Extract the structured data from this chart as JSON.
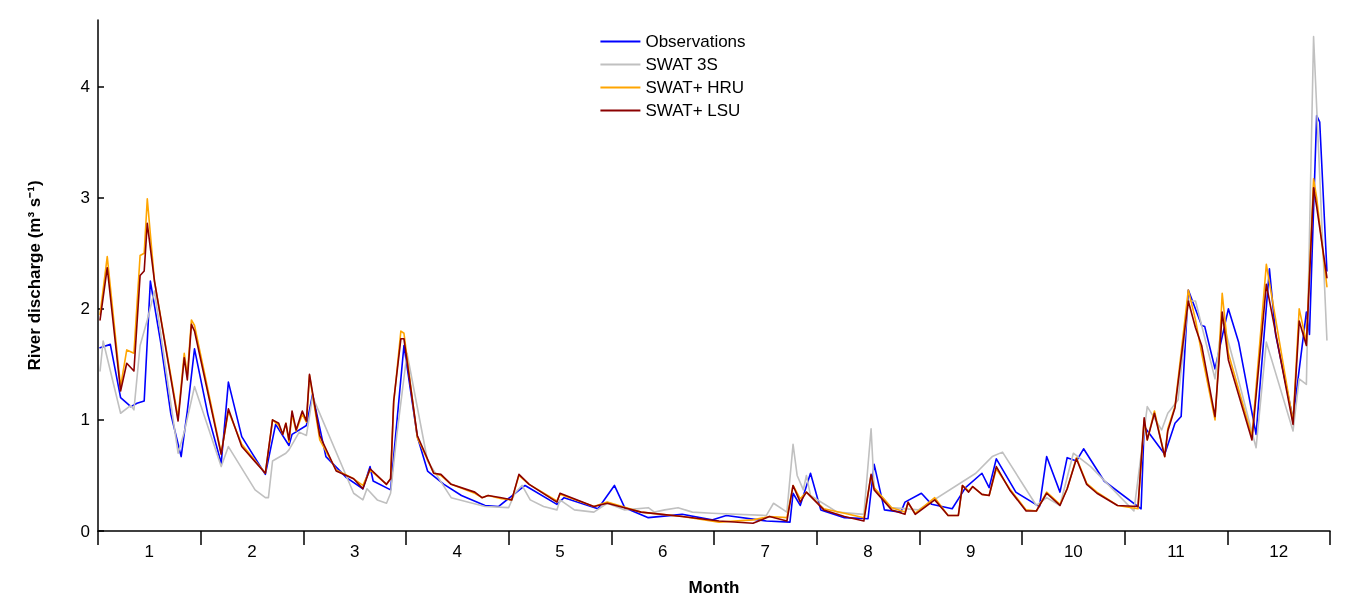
{
  "chart_data": {
    "type": "line",
    "xlabel": "Month",
    "ylabel": "River discharge (m³ s⁻¹)",
    "xlim": [
      0.5,
      12.5
    ],
    "ylim": [
      0,
      4.6
    ],
    "xticks": [
      1,
      2,
      3,
      4,
      5,
      6,
      7,
      8,
      9,
      10,
      11,
      12
    ],
    "yticks": [
      0,
      1,
      2,
      3,
      4
    ],
    "grid": false,
    "legend": "top",
    "marker": "none",
    "line_style": "solid",
    "series": [
      {
        "name": "Observations",
        "color": "#0000ff",
        "x": [
          0.52,
          0.62,
          0.72,
          0.82,
          0.88,
          0.95,
          1.01,
          1.11,
          1.21,
          1.31,
          1.37,
          1.44,
          1.57,
          1.7,
          1.77,
          1.9,
          2.13,
          2.23,
          2.36,
          2.39,
          2.53,
          2.59,
          2.72,
          2.92,
          3.08,
          3.15,
          3.18,
          3.35,
          3.48,
          3.61,
          3.71,
          3.87,
          4.04,
          4.27,
          4.4,
          4.66,
          4.97,
          5.04,
          5.37,
          5.53,
          5.63,
          5.86,
          6.19,
          6.48,
          6.62,
          7.01,
          7.24,
          7.27,
          7.34,
          7.44,
          7.54,
          7.77,
          8.0,
          8.06,
          8.16,
          8.32,
          8.36,
          8.52,
          8.62,
          8.82,
          8.95,
          9.11,
          9.18,
          9.25,
          9.44,
          9.67,
          9.74,
          9.87,
          9.94,
          10.03,
          10.1,
          10.3,
          10.66,
          10.69,
          10.89,
          10.99,
          11.05,
          11.12,
          11.25,
          11.28,
          11.38,
          11.51,
          11.61,
          11.78,
          11.91,
          11.97,
          12.14,
          12.27,
          12.3,
          12.37,
          12.4,
          12.47
        ],
        "values": [
          1.65,
          1.68,
          1.2,
          1.12,
          1.15,
          1.17,
          2.25,
          1.7,
          1.05,
          0.67,
          1.08,
          1.64,
          1.05,
          0.61,
          1.34,
          0.85,
          0.51,
          0.96,
          0.77,
          0.87,
          0.95,
          1.23,
          0.67,
          0.48,
          0.38,
          0.58,
          0.45,
          0.37,
          1.67,
          0.85,
          0.54,
          0.42,
          0.32,
          0.23,
          0.22,
          0.41,
          0.24,
          0.3,
          0.2,
          0.41,
          0.21,
          0.12,
          0.15,
          0.1,
          0.14,
          0.09,
          0.08,
          0.34,
          0.23,
          0.52,
          0.19,
          0.12,
          0.11,
          0.6,
          0.19,
          0.17,
          0.26,
          0.34,
          0.24,
          0.2,
          0.39,
          0.52,
          0.39,
          0.65,
          0.35,
          0.22,
          0.67,
          0.35,
          0.66,
          0.63,
          0.74,
          0.45,
          0.2,
          0.94,
          0.69,
          0.97,
          1.03,
          2.17,
          1.85,
          1.84,
          1.46,
          2.0,
          1.7,
          0.87,
          2.36,
          1.77,
          1.01,
          1.97,
          1.77,
          3.74,
          3.68,
          2.34
        ]
      },
      {
        "name": "SWAT 3S",
        "color": "#c0c0c0",
        "x": [
          0.52,
          0.55,
          0.72,
          0.82,
          0.85,
          0.91,
          0.98,
          1.05,
          1.28,
          1.34,
          1.44,
          1.7,
          1.77,
          2.03,
          2.13,
          2.16,
          2.2,
          2.33,
          2.36,
          2.46,
          2.53,
          2.59,
          2.99,
          3.08,
          3.12,
          3.22,
          3.31,
          3.35,
          3.41,
          3.51,
          3.71,
          3.94,
          4.27,
          4.5,
          4.56,
          4.63,
          4.71,
          4.84,
          4.97,
          5.0,
          5.14,
          5.33,
          5.46,
          5.63,
          5.86,
          5.92,
          6.02,
          6.15,
          6.29,
          6.48,
          7.01,
          7.08,
          7.21,
          7.27,
          7.31,
          7.37,
          7.4,
          7.44,
          7.7,
          7.96,
          8.03,
          8.06,
          8.23,
          8.49,
          9.05,
          9.21,
          9.31,
          9.64,
          9.74,
          9.87,
          10.0,
          10.17,
          10.59,
          10.72,
          10.86,
          10.92,
          11.02,
          11.12,
          11.19,
          11.38,
          11.45,
          11.58,
          11.78,
          11.88,
          12.14,
          12.2,
          12.27,
          12.34,
          12.47
        ],
        "values": [
          1.44,
          1.71,
          1.06,
          1.13,
          1.09,
          1.67,
          1.9,
          2.16,
          0.7,
          0.89,
          1.3,
          0.58,
          0.76,
          0.37,
          0.3,
          0.3,
          0.63,
          0.7,
          0.73,
          0.89,
          0.86,
          1.21,
          0.34,
          0.28,
          0.38,
          0.28,
          0.25,
          0.34,
          0.86,
          1.6,
          0.63,
          0.3,
          0.22,
          0.21,
          0.34,
          0.41,
          0.28,
          0.22,
          0.19,
          0.28,
          0.19,
          0.17,
          0.25,
          0.19,
          0.21,
          0.17,
          0.19,
          0.21,
          0.17,
          0.16,
          0.14,
          0.25,
          0.17,
          0.78,
          0.5,
          0.37,
          0.5,
          0.32,
          0.17,
          0.15,
          0.92,
          0.39,
          0.21,
          0.19,
          0.52,
          0.67,
          0.71,
          0.23,
          0.3,
          0.23,
          0.7,
          0.58,
          0.18,
          1.12,
          0.91,
          1.06,
          1.18,
          2.07,
          2.07,
          1.37,
          1.91,
          1.46,
          0.75,
          1.7,
          0.9,
          1.37,
          1.32,
          4.45,
          1.72
        ]
      },
      {
        "name": "SWAT+ HRU",
        "color": "#ffa500",
        "x": [
          0.52,
          0.59,
          0.72,
          0.78,
          0.85,
          0.91,
          0.95,
          0.98,
          1.05,
          1.28,
          1.34,
          1.37,
          1.41,
          1.44,
          1.7,
          1.77,
          1.9,
          2.13,
          2.2,
          2.26,
          2.3,
          2.33,
          2.36,
          2.39,
          2.43,
          2.49,
          2.53,
          2.56,
          2.66,
          2.82,
          2.99,
          3.08,
          3.15,
          3.31,
          3.35,
          3.38,
          3.45,
          3.48,
          3.61,
          3.77,
          3.84,
          3.94,
          4.17,
          4.24,
          4.3,
          4.43,
          4.53,
          4.6,
          4.7,
          4.97,
          5.0,
          5.33,
          5.46,
          5.79,
          6.19,
          6.55,
          6.88,
          7.04,
          7.21,
          7.27,
          7.34,
          7.4,
          7.57,
          7.77,
          7.96,
          8.03,
          8.06,
          8.23,
          8.36,
          8.39,
          8.46,
          8.49,
          8.65,
          8.78,
          8.88,
          8.92,
          8.98,
          9.02,
          9.11,
          9.18,
          9.25,
          9.38,
          9.54,
          9.64,
          9.74,
          9.87,
          9.94,
          10.03,
          10.13,
          10.23,
          10.43,
          10.63,
          10.69,
          10.72,
          10.79,
          10.89,
          10.92,
          10.99,
          11.12,
          11.19,
          11.25,
          11.38,
          11.42,
          11.45,
          11.51,
          11.74,
          11.88,
          12.14,
          12.2,
          12.27,
          12.34,
          12.37,
          12.47
        ],
        "values": [
          1.95,
          2.47,
          1.3,
          1.63,
          1.6,
          2.48,
          2.5,
          2.99,
          2.25,
          1.02,
          1.6,
          1.4,
          1.9,
          1.85,
          0.7,
          1.08,
          0.78,
          0.52,
          1.0,
          0.95,
          0.87,
          0.97,
          0.8,
          1.05,
          0.9,
          1.05,
          0.98,
          1.4,
          0.82,
          0.55,
          0.47,
          0.41,
          0.55,
          0.42,
          0.47,
          1.15,
          1.8,
          1.78,
          0.84,
          0.52,
          0.5,
          0.42,
          0.34,
          0.3,
          0.32,
          0.29,
          0.28,
          0.5,
          0.42,
          0.27,
          0.33,
          0.22,
          0.26,
          0.17,
          0.13,
          0.08,
          0.1,
          0.13,
          0.12,
          0.41,
          0.29,
          0.35,
          0.2,
          0.16,
          0.12,
          0.5,
          0.39,
          0.21,
          0.17,
          0.25,
          0.16,
          0.18,
          0.3,
          0.14,
          0.14,
          0.41,
          0.36,
          0.4,
          0.33,
          0.32,
          0.56,
          0.38,
          0.19,
          0.18,
          0.35,
          0.24,
          0.38,
          0.66,
          0.43,
          0.35,
          0.23,
          0.2,
          1.0,
          0.82,
          1.08,
          0.67,
          0.92,
          1.12,
          2.17,
          1.9,
          1.6,
          1.0,
          1.6,
          2.14,
          1.6,
          0.85,
          2.4,
          0.98,
          2.0,
          1.7,
          3.17,
          3.0,
          2.2
        ]
      },
      {
        "name": "SWAT+ LSU",
        "color": "#8b0000",
        "x": [
          0.52,
          0.59,
          0.72,
          0.78,
          0.85,
          0.91,
          0.95,
          0.98,
          1.05,
          1.28,
          1.34,
          1.37,
          1.41,
          1.44,
          1.7,
          1.77,
          1.9,
          2.13,
          2.2,
          2.26,
          2.3,
          2.33,
          2.36,
          2.39,
          2.43,
          2.49,
          2.53,
          2.56,
          2.66,
          2.82,
          2.99,
          3.08,
          3.15,
          3.31,
          3.35,
          3.38,
          3.45,
          3.48,
          3.61,
          3.77,
          3.84,
          3.94,
          4.17,
          4.24,
          4.3,
          4.43,
          4.53,
          4.6,
          4.7,
          4.97,
          5.0,
          5.33,
          5.46,
          5.79,
          6.19,
          6.55,
          6.88,
          7.04,
          7.21,
          7.27,
          7.34,
          7.4,
          7.57,
          7.77,
          7.96,
          8.03,
          8.06,
          8.23,
          8.36,
          8.39,
          8.46,
          8.49,
          8.65,
          8.78,
          8.88,
          8.92,
          8.98,
          9.02,
          9.11,
          9.18,
          9.25,
          9.38,
          9.54,
          9.64,
          9.74,
          9.87,
          9.94,
          10.03,
          10.13,
          10.23,
          10.43,
          10.63,
          10.69,
          10.72,
          10.79,
          10.89,
          10.92,
          10.99,
          11.12,
          11.19,
          11.25,
          11.38,
          11.42,
          11.45,
          11.51,
          11.74,
          11.88,
          12.14,
          12.2,
          12.27,
          12.34,
          12.37,
          12.47
        ],
        "values": [
          1.9,
          2.37,
          1.26,
          1.51,
          1.44,
          2.3,
          2.34,
          2.77,
          2.25,
          0.99,
          1.56,
          1.36,
          1.86,
          1.8,
          0.69,
          1.1,
          0.76,
          0.52,
          1.0,
          0.97,
          0.87,
          0.97,
          0.82,
          1.08,
          0.91,
          1.08,
          0.99,
          1.41,
          0.86,
          0.54,
          0.47,
          0.38,
          0.56,
          0.42,
          0.47,
          1.17,
          1.73,
          1.73,
          0.86,
          0.52,
          0.51,
          0.42,
          0.35,
          0.3,
          0.32,
          0.3,
          0.28,
          0.51,
          0.42,
          0.26,
          0.34,
          0.22,
          0.25,
          0.17,
          0.13,
          0.09,
          0.07,
          0.13,
          0.09,
          0.41,
          0.26,
          0.35,
          0.19,
          0.13,
          0.09,
          0.51,
          0.37,
          0.19,
          0.15,
          0.26,
          0.15,
          0.17,
          0.28,
          0.14,
          0.14,
          0.41,
          0.35,
          0.4,
          0.33,
          0.32,
          0.58,
          0.37,
          0.18,
          0.18,
          0.34,
          0.23,
          0.38,
          0.65,
          0.42,
          0.34,
          0.23,
          0.22,
          1.02,
          0.82,
          1.06,
          0.67,
          0.9,
          1.11,
          2.07,
          1.83,
          1.67,
          1.03,
          1.54,
          1.97,
          1.54,
          0.82,
          2.22,
          0.96,
          1.89,
          1.67,
          3.09,
          2.92,
          2.28
        ]
      }
    ]
  }
}
